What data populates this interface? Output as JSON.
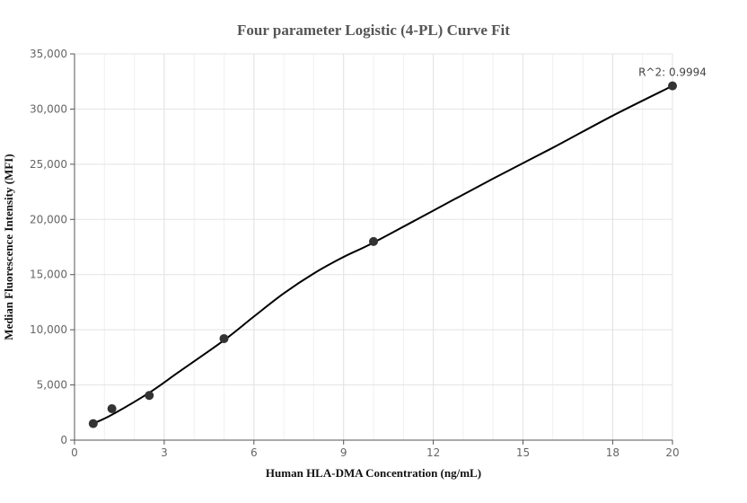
{
  "chart_data": {
    "type": "scatter",
    "title": "Four parameter Logistic (4-PL) Curve Fit",
    "xlabel": "Human HLA-DMA Concentration (ng/mL)",
    "ylabel": "Median Fluorescence Intensity (MFI)",
    "xlim": [
      0,
      20
    ],
    "ylim": [
      0,
      35000
    ],
    "x_ticks": [
      0,
      3,
      6,
      9,
      12,
      15,
      18,
      20
    ],
    "x_tick_labels": [
      "0",
      "3",
      "6",
      "9",
      "12",
      "15",
      "18",
      "20"
    ],
    "y_ticks": [
      0,
      5000,
      10000,
      15000,
      20000,
      25000,
      30000,
      35000
    ],
    "y_tick_labels": [
      "0",
      "5,000",
      "10,000",
      "15,000",
      "20,000",
      "25,000",
      "30,000",
      "35,000"
    ],
    "grid": true,
    "series": [
      {
        "points": [
          {
            "x": 0.625,
            "y": 1500
          },
          {
            "x": 1.25,
            "y": 2850
          },
          {
            "x": 2.5,
            "y": 4050
          },
          {
            "x": 5,
            "y": 9200
          },
          {
            "x": 10,
            "y": 18000
          },
          {
            "x": 20,
            "y": 32100
          }
        ],
        "color": "#333333"
      }
    ],
    "fit_curve": {
      "x": [
        0.625,
        1.25,
        2.5,
        3.5,
        5,
        6,
        7,
        8,
        9,
        10,
        12,
        14,
        16,
        18,
        20
      ],
      "y": [
        1500,
        2300,
        4300,
        6200,
        9050,
        11200,
        13300,
        15100,
        16600,
        17900,
        20800,
        23700,
        26500,
        29400,
        32100
      ],
      "color": "#000000"
    },
    "annotation": {
      "text": "R^2: 0.9994"
    }
  }
}
